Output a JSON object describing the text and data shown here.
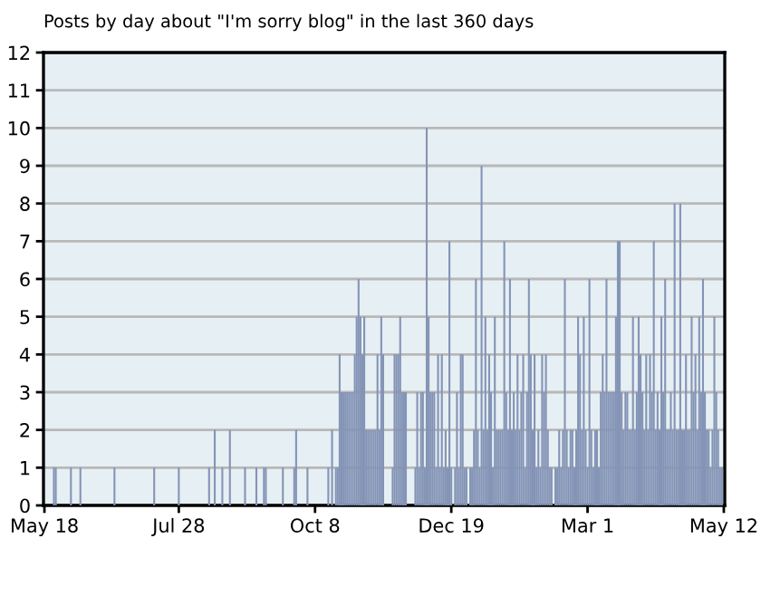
{
  "chart_data": {
    "type": "bar",
    "title": "Posts by day about \"I'm sorry blog\" in the last 360 days",
    "categories": [
      "May 18",
      null,
      null,
      null,
      null,
      null,
      null,
      null,
      null,
      null,
      null,
      null,
      null,
      null,
      null,
      null,
      null,
      null,
      null,
      null,
      null,
      null,
      null,
      null,
      null,
      null,
      null,
      null,
      null,
      null,
      null,
      null,
      null,
      null,
      null,
      null,
      null,
      null,
      null,
      null,
      null,
      null,
      null,
      null,
      null,
      null,
      null,
      null,
      null,
      null,
      null,
      null,
      null,
      null,
      null,
      null,
      null,
      null,
      null,
      null,
      null,
      null,
      null,
      null,
      null,
      null,
      null,
      null,
      null,
      null,
      null,
      "Jul 28",
      null,
      null,
      null,
      null,
      null,
      null,
      null,
      null,
      null,
      null,
      null,
      null,
      null,
      null,
      null,
      null,
      null,
      null,
      null,
      null,
      null,
      null,
      null,
      null,
      null,
      null,
      null,
      null,
      null,
      null,
      null,
      null,
      null,
      null,
      null,
      null,
      null,
      null,
      null,
      null,
      null,
      null,
      null,
      null,
      null,
      null,
      null,
      null,
      null,
      null,
      null,
      null,
      null,
      null,
      null,
      null,
      null,
      null,
      null,
      null,
      null,
      null,
      null,
      null,
      null,
      null,
      null,
      null,
      null,
      null,
      null,
      "Oct 8",
      null,
      null,
      null,
      null,
      null,
      null,
      null,
      null,
      null,
      null,
      null,
      null,
      null,
      null,
      null,
      null,
      null,
      null,
      null,
      null,
      null,
      null,
      null,
      null,
      null,
      null,
      null,
      null,
      null,
      null,
      null,
      null,
      null,
      null,
      null,
      null,
      null,
      null,
      null,
      null,
      null,
      null,
      null,
      null,
      null,
      null,
      null,
      null,
      null,
      null,
      null,
      null,
      null,
      null,
      null,
      null,
      null,
      null,
      null,
      null,
      null,
      null,
      null,
      null,
      null,
      null,
      null,
      null,
      null,
      null,
      null,
      "Dec 19",
      null,
      null,
      null,
      null,
      null,
      null,
      null,
      null,
      null,
      null,
      null,
      null,
      null,
      null,
      null,
      null,
      null,
      null,
      null,
      null,
      null,
      null,
      null,
      null,
      null,
      null,
      null,
      null,
      null,
      null,
      null,
      null,
      null,
      null,
      null,
      null,
      null,
      null,
      null,
      null,
      null,
      null,
      null,
      null,
      null,
      null,
      null,
      null,
      null,
      null,
      null,
      null,
      null,
      null,
      null,
      null,
      null,
      null,
      null,
      null,
      null,
      null,
      null,
      null,
      null,
      null,
      null,
      null,
      null,
      null,
      null,
      "Mar 1",
      null,
      null,
      null,
      null,
      null,
      null,
      null,
      null,
      null,
      null,
      null,
      null,
      null,
      null,
      null,
      null,
      null,
      null,
      null,
      null,
      null,
      null,
      null,
      null,
      null,
      null,
      null,
      null,
      null,
      null,
      null,
      null,
      null,
      null,
      null,
      null,
      null,
      null,
      null,
      null,
      null,
      null,
      null,
      null,
      null,
      null,
      null,
      null,
      null,
      null,
      null,
      null,
      null,
      null,
      null,
      null,
      null,
      null,
      null,
      null,
      null,
      null,
      null,
      null,
      null,
      null,
      null,
      null,
      null,
      null,
      null,
      "May 12"
    ],
    "values": [
      0,
      0,
      0,
      0,
      0,
      1,
      1,
      0,
      0,
      0,
      0,
      0,
      0,
      0,
      1,
      0,
      0,
      0,
      0,
      1,
      0,
      0,
      0,
      0,
      0,
      0,
      0,
      0,
      0,
      0,
      0,
      0,
      0,
      0,
      0,
      0,
      0,
      1,
      0,
      0,
      0,
      0,
      0,
      0,
      0,
      0,
      0,
      0,
      0,
      0,
      0,
      0,
      0,
      0,
      0,
      0,
      0,
      0,
      1,
      0,
      0,
      0,
      0,
      0,
      0,
      0,
      0,
      0,
      0,
      0,
      0,
      1,
      0,
      0,
      0,
      0,
      0,
      0,
      0,
      0,
      0,
      0,
      0,
      0,
      0,
      0,
      0,
      1,
      0,
      0,
      2,
      0,
      0,
      0,
      1,
      0,
      0,
      0,
      2,
      0,
      0,
      0,
      0,
      0,
      0,
      0,
      1,
      0,
      0,
      0,
      0,
      0,
      1,
      0,
      0,
      0,
      1,
      1,
      0,
      0,
      0,
      0,
      0,
      0,
      0,
      0,
      1,
      0,
      0,
      0,
      0,
      0,
      1,
      2,
      0,
      0,
      0,
      0,
      0,
      1,
      0,
      0,
      0,
      0,
      0,
      0,
      0,
      0,
      0,
      0,
      1,
      0,
      2,
      0,
      1,
      1,
      4,
      3,
      3,
      3,
      3,
      3,
      3,
      3,
      4,
      5,
      6,
      5,
      4,
      5,
      2,
      2,
      2,
      2,
      2,
      2,
      4,
      2,
      5,
      4,
      0,
      0,
      0,
      0,
      1,
      4,
      4,
      4,
      5,
      3,
      3,
      3,
      0,
      0,
      0,
      0,
      1,
      3,
      1,
      3,
      3,
      1,
      10,
      5,
      3,
      3,
      3,
      1,
      4,
      1,
      4,
      1,
      2,
      1,
      7,
      1,
      0,
      1,
      3,
      1,
      4,
      4,
      1,
      1,
      0,
      1,
      1,
      2,
      6,
      2,
      1,
      9,
      2,
      5,
      2,
      4,
      3,
      1,
      5,
      2,
      2,
      2,
      2,
      7,
      3,
      2,
      6,
      2,
      3,
      2,
      4,
      2,
      3,
      4,
      1,
      3,
      6,
      4,
      2,
      4,
      1,
      2,
      1,
      4,
      3,
      4,
      2,
      1,
      1,
      0,
      1,
      1,
      2,
      1,
      2,
      6,
      2,
      1,
      2,
      2,
      1,
      2,
      5,
      4,
      2,
      5,
      2,
      1,
      6,
      2,
      1,
      2,
      2,
      1,
      3,
      4,
      3,
      6,
      3,
      3,
      3,
      3,
      5,
      7,
      7,
      3,
      2,
      3,
      3,
      2,
      2,
      5,
      2,
      3,
      5,
      4,
      3,
      2,
      4,
      2,
      4,
      3,
      7,
      2,
      3,
      2,
      5,
      3,
      6,
      2,
      2,
      3,
      2,
      8,
      2,
      2,
      8,
      2,
      2,
      4,
      2,
      2,
      5,
      3,
      4,
      2,
      5,
      3,
      6,
      3,
      2,
      2,
      1,
      2,
      5,
      3,
      2,
      1,
      1,
      0
    ],
    "color": "#8494b6",
    "ylim": [
      0,
      12
    ],
    "yticks": [
      0,
      1,
      2,
      3,
      4,
      5,
      6,
      7,
      8,
      9,
      10,
      11,
      12
    ],
    "grid": "y"
  }
}
